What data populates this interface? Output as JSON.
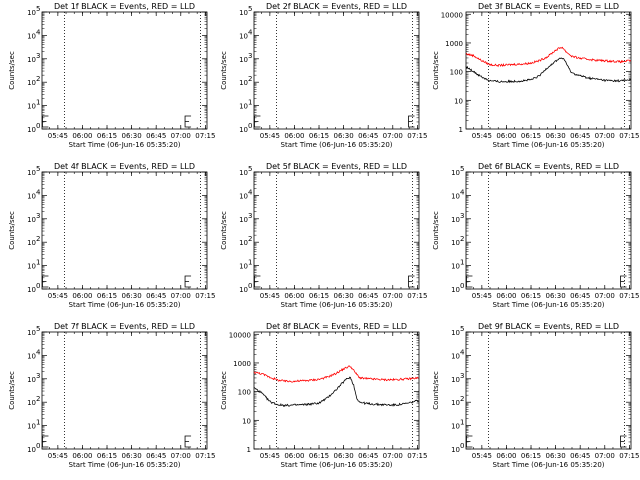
{
  "x_ticks": [
    "05:45",
    "06:00",
    "06:15",
    "06:30",
    "06:45",
    "07:00",
    "07:15"
  ],
  "xlabel": "Start Time (06-Jun-16 05:35:20)",
  "ylabel": "Counts/sec",
  "exp_ticks": [
    "10",
    "10",
    "10",
    "10",
    "10",
    "10"
  ],
  "exp_powers": [
    "0",
    "1",
    "2",
    "3",
    "4",
    "5"
  ],
  "dec_ticks": [
    "1",
    "10",
    "100",
    "1000",
    "10000"
  ],
  "colors": {
    "events": "#000000",
    "lld": "#ff0000",
    "attenuator": "#000000"
  },
  "chart_data": [
    {
      "type": "line",
      "title": "Det 1f BLACK = Events, RED = LLD",
      "yscale": "log",
      "ylim": [
        1,
        100000
      ],
      "tick_style": "power",
      "has_data": false,
      "attenuator_markers": [
        "05:35",
        "07:02"
      ],
      "dotted_lines": [
        "05:49",
        "07:12"
      ],
      "series": []
    },
    {
      "type": "line",
      "title": "Det 2f BLACK = Events, RED = LLD",
      "yscale": "log",
      "ylim": [
        1,
        100000
      ],
      "tick_style": "power",
      "has_data": false,
      "attenuator_markers": [
        "05:35",
        "07:09"
      ],
      "dotted_lines": [
        "05:49",
        "07:12"
      ],
      "series": []
    },
    {
      "type": "line",
      "title": "Det 3f BLACK = Events, RED = LLD",
      "yscale": "log",
      "ylim": [
        1,
        12000
      ],
      "tick_style": "decimal",
      "has_data": true,
      "attenuator_markers": [],
      "dotted_lines": [
        "05:49",
        "07:12"
      ],
      "series": [
        {
          "color": "#ff0000",
          "x": [
            "05:35",
            "05:40",
            "05:45",
            "05:50",
            "05:55",
            "06:00",
            "06:05",
            "06:10",
            "06:15",
            "06:20",
            "06:25",
            "06:30",
            "06:32",
            "06:34",
            "06:36",
            "06:38",
            "06:40",
            "06:45",
            "06:50",
            "06:55",
            "07:00",
            "07:05",
            "07:10",
            "07:15"
          ],
          "values": [
            420,
            360,
            240,
            175,
            165,
            170,
            180,
            185,
            200,
            240,
            330,
            560,
            640,
            720,
            520,
            420,
            340,
            290,
            270,
            250,
            240,
            230,
            220,
            240
          ]
        },
        {
          "color": "#000000",
          "x": [
            "05:35",
            "05:40",
            "05:45",
            "05:50",
            "05:55",
            "06:00",
            "06:05",
            "06:10",
            "06:15",
            "06:20",
            "06:25",
            "06:30",
            "06:32",
            "06:34",
            "06:36",
            "06:38",
            "06:40",
            "06:45",
            "06:50",
            "06:55",
            "07:00",
            "07:05",
            "07:10",
            "07:15"
          ],
          "values": [
            150,
            100,
            65,
            48,
            45,
            45,
            46,
            48,
            52,
            70,
            140,
            230,
            280,
            300,
            230,
            130,
            90,
            72,
            60,
            55,
            50,
            48,
            48,
            52
          ]
        }
      ]
    },
    {
      "type": "line",
      "title": "Det 4f BLACK = Events, RED = LLD",
      "yscale": "log",
      "ylim": [
        1,
        100000
      ],
      "tick_style": "power",
      "has_data": false,
      "attenuator_markers": [
        "05:35",
        "07:02"
      ],
      "dotted_lines": [
        "05:49",
        "07:12"
      ],
      "series": []
    },
    {
      "type": "line",
      "title": "Det 5f BLACK = Events, RED = LLD",
      "yscale": "log",
      "ylim": [
        1,
        100000
      ],
      "tick_style": "power",
      "has_data": false,
      "attenuator_markers": [
        "05:35",
        "07:09"
      ],
      "dotted_lines": [
        "05:49",
        "07:12"
      ],
      "series": []
    },
    {
      "type": "line",
      "title": "Det 6f BLACK = Events, RED = LLD",
      "yscale": "log",
      "ylim": [
        1,
        100000
      ],
      "tick_style": "power",
      "has_data": false,
      "attenuator_markers": [
        "05:35",
        "07:09"
      ],
      "dotted_lines": [
        "05:49",
        "07:12"
      ],
      "series": []
    },
    {
      "type": "line",
      "title": "Det 7f BLACK = Events, RED = LLD",
      "yscale": "log",
      "ylim": [
        1,
        100000
      ],
      "tick_style": "power",
      "has_data": false,
      "attenuator_markers": [
        "05:35",
        "07:02"
      ],
      "dotted_lines": [
        "05:49",
        "07:12"
      ],
      "series": []
    },
    {
      "type": "line",
      "title": "Det 8f BLACK = Events, RED = LLD",
      "yscale": "log",
      "ylim": [
        1,
        12000
      ],
      "tick_style": "decimal",
      "has_data": true,
      "attenuator_markers": [],
      "dotted_lines": [
        "05:49",
        "07:12"
      ],
      "series": [
        {
          "color": "#ff0000",
          "x": [
            "05:35",
            "05:40",
            "05:45",
            "05:50",
            "05:55",
            "06:00",
            "06:05",
            "06:10",
            "06:15",
            "06:20",
            "06:25",
            "06:30",
            "06:32",
            "06:34",
            "06:36",
            "06:38",
            "06:40",
            "06:45",
            "06:50",
            "06:55",
            "07:00",
            "07:05",
            "07:10",
            "07:15"
          ],
          "values": [
            480,
            420,
            320,
            250,
            230,
            230,
            240,
            250,
            270,
            320,
            420,
            620,
            700,
            780,
            560,
            400,
            300,
            280,
            270,
            260,
            260,
            270,
            280,
            300
          ]
        },
        {
          "color": "#000000",
          "x": [
            "05:35",
            "05:40",
            "05:45",
            "05:50",
            "05:55",
            "06:00",
            "06:05",
            "06:10",
            "06:15",
            "06:20",
            "06:25",
            "06:30",
            "06:32",
            "06:34",
            "06:36",
            "06:38",
            "06:40",
            "06:45",
            "06:50",
            "06:55",
            "07:00",
            "07:05",
            "07:10",
            "07:15"
          ],
          "values": [
            140,
            90,
            45,
            35,
            33,
            34,
            35,
            37,
            40,
            60,
            110,
            220,
            280,
            320,
            180,
            60,
            42,
            38,
            36,
            35,
            34,
            36,
            40,
            48
          ]
        }
      ]
    },
    {
      "type": "line",
      "title": "Det 9f BLACK = Events, RED = LLD",
      "yscale": "log",
      "ylim": [
        1,
        100000
      ],
      "tick_style": "power",
      "has_data": false,
      "attenuator_markers": [
        "05:35",
        "07:09"
      ],
      "dotted_lines": [
        "05:49",
        "07:12"
      ],
      "series": []
    }
  ]
}
